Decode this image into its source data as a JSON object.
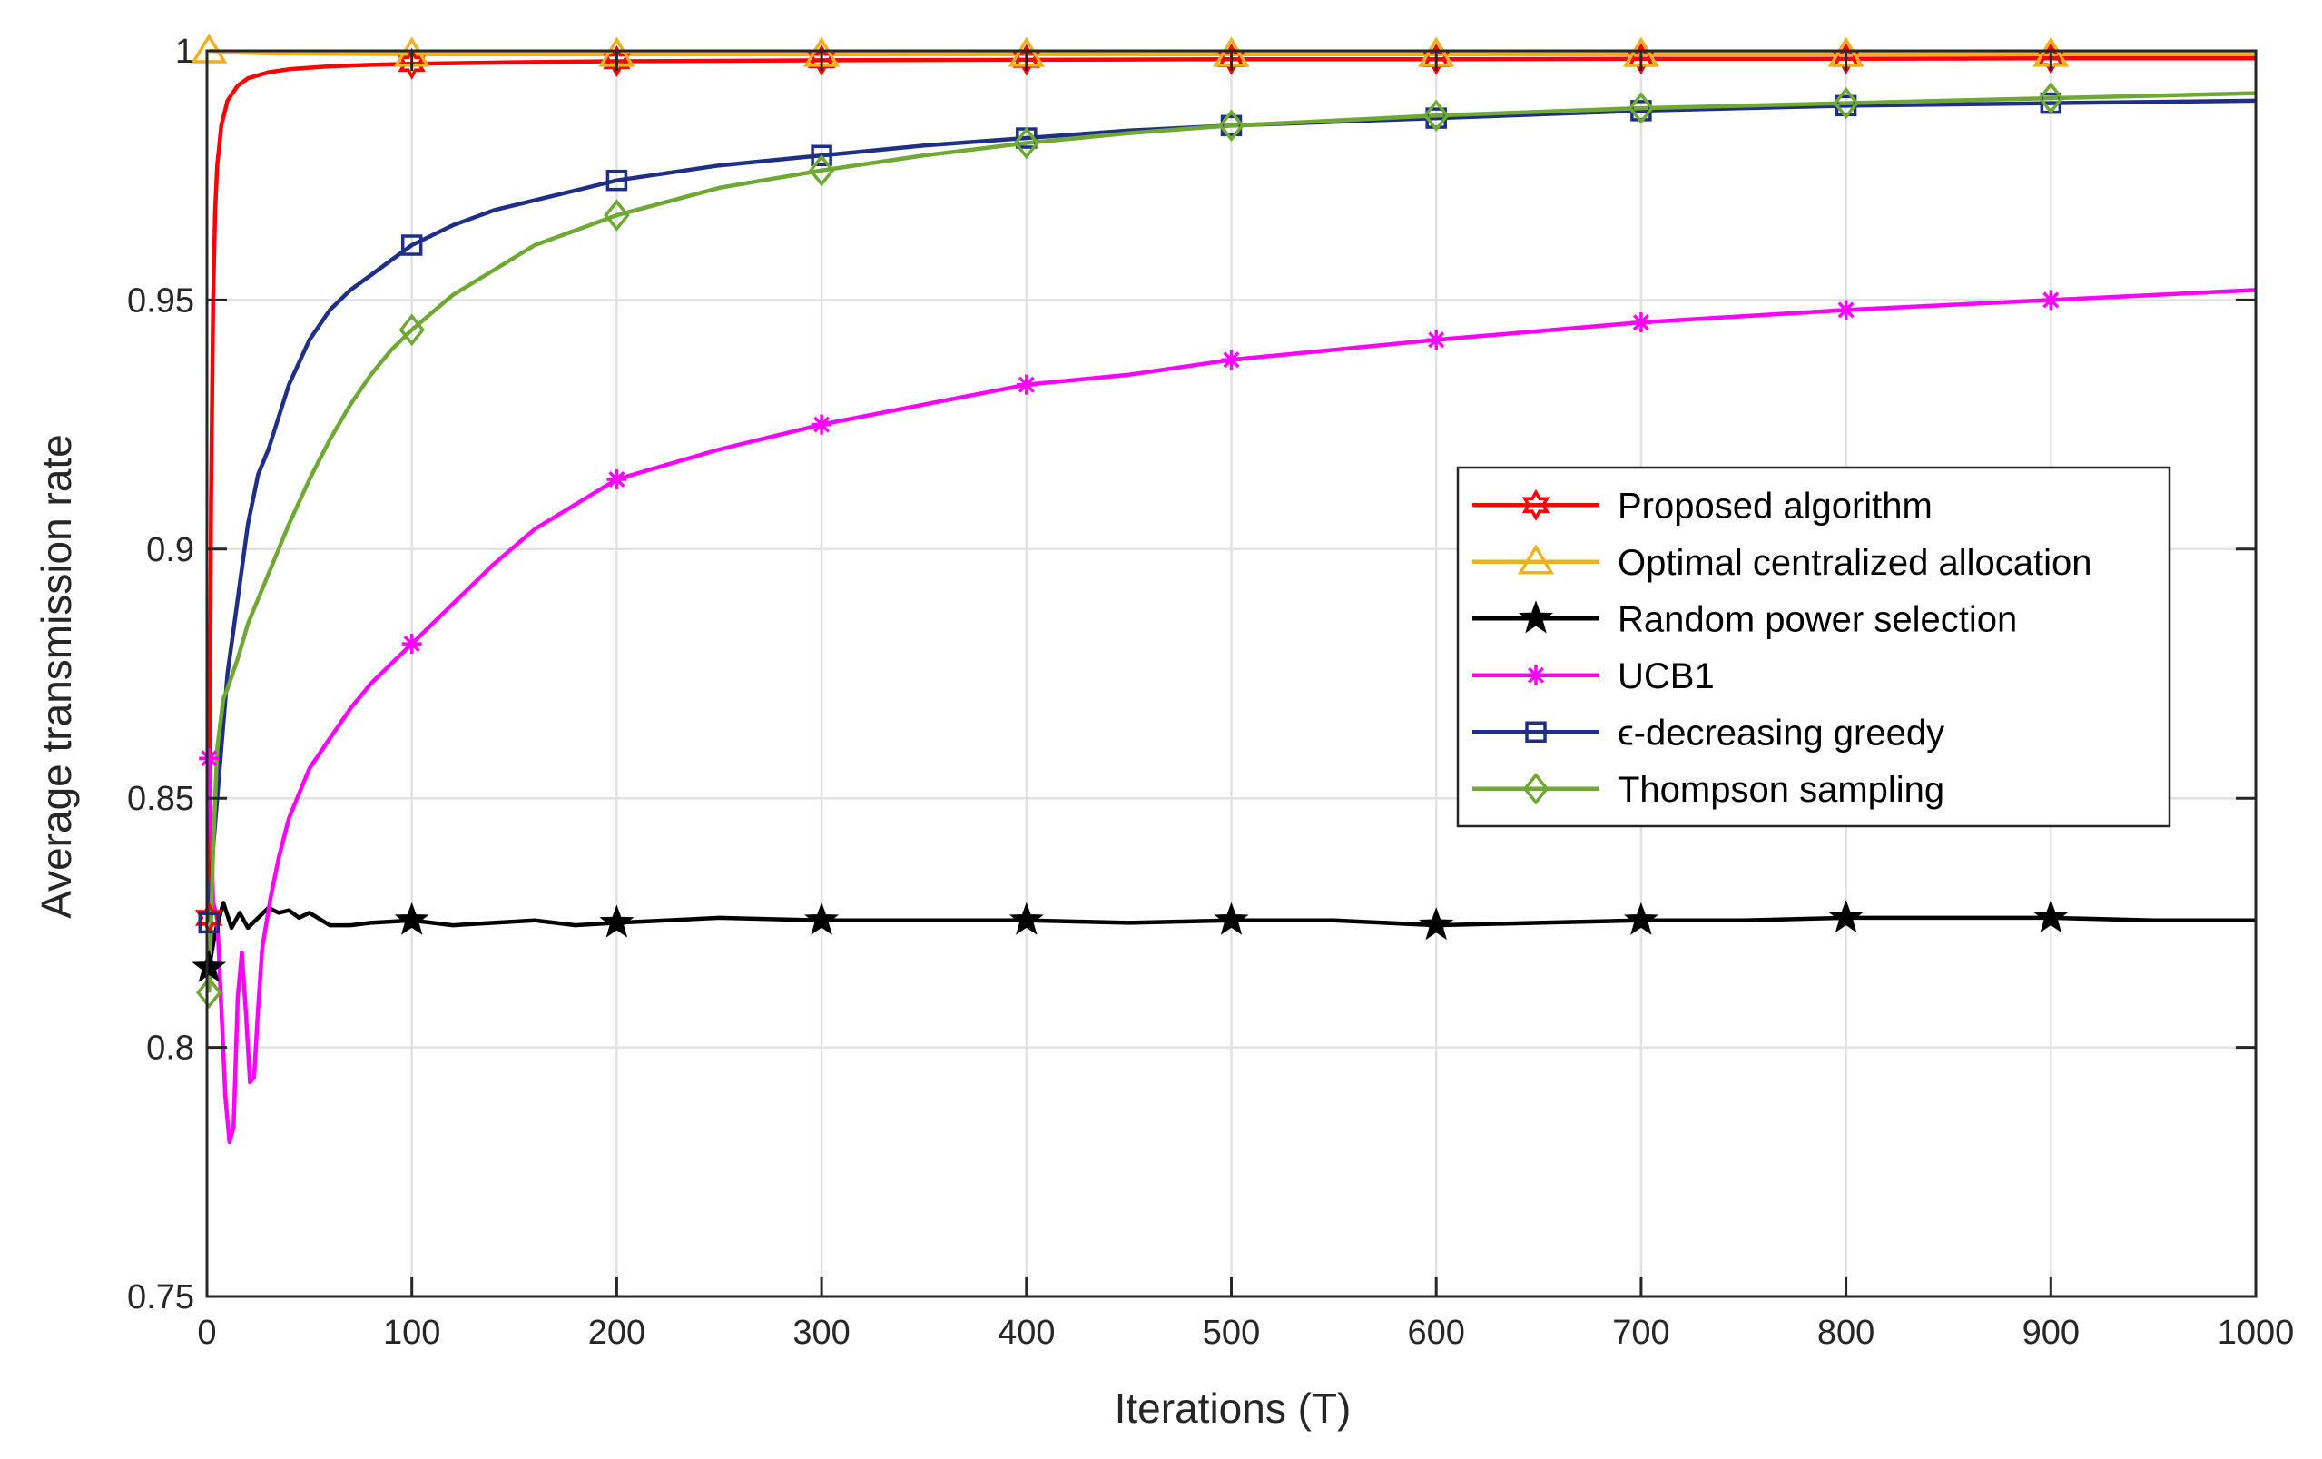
{
  "chart_data": {
    "type": "line",
    "title": "",
    "xlabel": "Iterations (T)",
    "ylabel": "Average transmission rate",
    "xlim": [
      0,
      1000
    ],
    "ylim": [
      0.75,
      1.0
    ],
    "grid": true,
    "legend_position": "right-center",
    "x_ticks": [
      0,
      100,
      200,
      300,
      400,
      500,
      600,
      700,
      800,
      900,
      1000
    ],
    "x_tick_labels": [
      "0",
      "100",
      "200",
      "300",
      "400",
      "500",
      "600",
      "700",
      "800",
      "900",
      "1000"
    ],
    "y_ticks": [
      0.75,
      0.8,
      0.85,
      0.9,
      0.95,
      1.0
    ],
    "y_tick_labels": [
      "0.75",
      "0.8",
      "0.85",
      "0.9",
      "0.95",
      "1"
    ],
    "marker_x": [
      1,
      100,
      200,
      300,
      400,
      500,
      600,
      700,
      800,
      900
    ],
    "series": [
      {
        "name": "Proposed algorithm",
        "color": "#ff0000",
        "marker": "hexagram",
        "x": [
          1,
          2,
          3,
          4,
          5,
          7,
          10,
          15,
          20,
          30,
          40,
          60,
          80,
          100,
          150,
          200,
          300,
          400,
          500,
          600,
          700,
          800,
          900,
          1000
        ],
        "y": [
          0.826,
          0.91,
          0.95,
          0.968,
          0.977,
          0.985,
          0.99,
          0.993,
          0.9945,
          0.9957,
          0.9963,
          0.9969,
          0.9972,
          0.9974,
          0.9977,
          0.9979,
          0.9981,
          0.9982,
          0.9983,
          0.9983,
          0.9984,
          0.9984,
          0.9985,
          0.9985
        ]
      },
      {
        "name": "Optimal centralized allocation",
        "color": "#edb120",
        "marker": "triangle",
        "x": [
          1,
          10,
          30,
          60,
          100,
          150,
          200,
          300,
          400,
          500,
          600,
          700,
          800,
          900,
          1000
        ],
        "y": [
          1.0,
          0.9997,
          0.9995,
          0.9994,
          0.9993,
          0.9993,
          0.9993,
          0.9993,
          0.9993,
          0.9993,
          0.9993,
          0.9993,
          0.9993,
          0.9993,
          0.9993
        ]
      },
      {
        "name": "Random power selection",
        "color": "#000000",
        "marker": "pentagram",
        "x": [
          1,
          4,
          8,
          12,
          16,
          20,
          25,
          30,
          35,
          40,
          45,
          50,
          60,
          70,
          80,
          100,
          120,
          140,
          160,
          180,
          200,
          250,
          300,
          350,
          400,
          450,
          500,
          550,
          600,
          650,
          700,
          750,
          800,
          850,
          900,
          950,
          1000
        ],
        "y": [
          0.816,
          0.823,
          0.829,
          0.824,
          0.827,
          0.824,
          0.826,
          0.828,
          0.827,
          0.8275,
          0.826,
          0.827,
          0.8245,
          0.8245,
          0.825,
          0.8255,
          0.8245,
          0.825,
          0.8255,
          0.8245,
          0.825,
          0.826,
          0.8255,
          0.8255,
          0.8255,
          0.825,
          0.8255,
          0.8255,
          0.8245,
          0.825,
          0.8255,
          0.8255,
          0.826,
          0.826,
          0.826,
          0.8255,
          0.8255
        ]
      },
      {
        "name": "UCB1",
        "color": "#ff00ff",
        "marker": "asterisk",
        "x": [
          1,
          3,
          5,
          7,
          9,
          11,
          13,
          15,
          17,
          19,
          21,
          23,
          25,
          27,
          29,
          31,
          35,
          40,
          50,
          60,
          70,
          80,
          90,
          100,
          120,
          140,
          160,
          180,
          200,
          250,
          300,
          350,
          400,
          450,
          500,
          600,
          700,
          800,
          900,
          1000
        ],
        "y": [
          0.858,
          0.829,
          0.826,
          0.808,
          0.79,
          0.781,
          0.784,
          0.81,
          0.819,
          0.807,
          0.793,
          0.794,
          0.808,
          0.82,
          0.825,
          0.83,
          0.838,
          0.846,
          0.856,
          0.862,
          0.868,
          0.873,
          0.877,
          0.881,
          0.889,
          0.897,
          0.904,
          0.909,
          0.914,
          0.92,
          0.925,
          0.929,
          0.933,
          0.935,
          0.938,
          0.942,
          0.9455,
          0.948,
          0.95,
          0.952
        ]
      },
      {
        "name": "ϵ-decreasing greedy",
        "color": "#1f2f88",
        "marker": "square",
        "x": [
          1,
          3,
          5,
          8,
          10,
          15,
          20,
          25,
          30,
          40,
          50,
          60,
          70,
          80,
          90,
          100,
          120,
          140,
          160,
          180,
          200,
          250,
          300,
          350,
          400,
          450,
          500,
          600,
          700,
          800,
          900,
          1000
        ],
        "y": [
          0.825,
          0.84,
          0.85,
          0.865,
          0.875,
          0.89,
          0.905,
          0.915,
          0.92,
          0.933,
          0.942,
          0.948,
          0.952,
          0.955,
          0.958,
          0.961,
          0.965,
          0.968,
          0.97,
          0.972,
          0.974,
          0.977,
          0.979,
          0.981,
          0.9825,
          0.984,
          0.985,
          0.9865,
          0.988,
          0.989,
          0.9895,
          0.99
        ]
      },
      {
        "name": "Thompson sampling",
        "color": "#6fa832",
        "marker": "diamond",
        "x": [
          1,
          3,
          5,
          8,
          10,
          15,
          20,
          30,
          40,
          50,
          60,
          70,
          80,
          90,
          100,
          120,
          140,
          160,
          180,
          200,
          250,
          300,
          350,
          400,
          450,
          500,
          600,
          700,
          800,
          900,
          1000
        ],
        "y": [
          0.811,
          0.84,
          0.86,
          0.87,
          0.872,
          0.878,
          0.885,
          0.895,
          0.905,
          0.914,
          0.922,
          0.929,
          0.935,
          0.94,
          0.944,
          0.951,
          0.956,
          0.961,
          0.964,
          0.967,
          0.9725,
          0.976,
          0.979,
          0.9815,
          0.9835,
          0.985,
          0.987,
          0.9885,
          0.9895,
          0.9905,
          0.9915
        ]
      }
    ]
  }
}
